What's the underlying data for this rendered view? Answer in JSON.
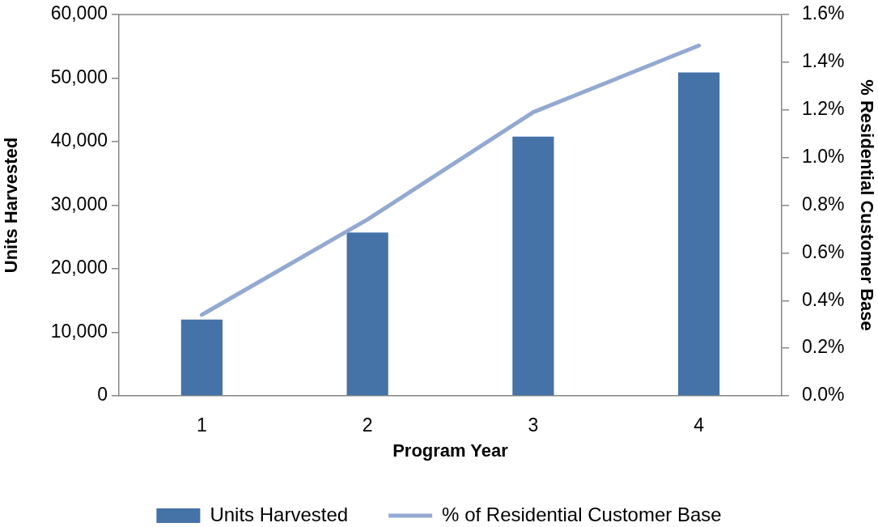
{
  "chart_data": {
    "type": "bar",
    "xlabel": "Program Year",
    "ylabel": "Units Harvested",
    "y2label": "% Residential Customer Base",
    "categories": [
      "1",
      "2",
      "3",
      "4"
    ],
    "series": [
      {
        "name": "Units Harvested",
        "color": "#4572a7",
        "values": [
          12000,
          25700,
          40800,
          50900
        ]
      },
      {
        "name": "% of Residential Customer Base",
        "type": "line",
        "axis": "y2",
        "color": "#93a9d1",
        "values": [
          0.34,
          0.74,
          1.19,
          1.47
        ]
      }
    ],
    "ylim": [
      0,
      60000
    ],
    "yticks": [
      {
        "value": 0,
        "label": "0"
      },
      {
        "value": 10000,
        "label": "10,000"
      },
      {
        "value": 20000,
        "label": "20,000"
      },
      {
        "value": 30000,
        "label": "30,000"
      },
      {
        "value": 40000,
        "label": "40,000"
      },
      {
        "value": 50000,
        "label": "50,000"
      },
      {
        "value": 60000,
        "label": "60,000"
      }
    ],
    "y2lim": [
      0,
      1.6
    ],
    "y2ticks": [
      {
        "value": 0,
        "label": "0.0%"
      },
      {
        "value": 0.2,
        "label": "0.2%"
      },
      {
        "value": 0.4,
        "label": "0.4%"
      },
      {
        "value": 0.6,
        "label": "0.6%"
      },
      {
        "value": 0.8,
        "label": "0.8%"
      },
      {
        "value": 1.0,
        "label": "1.0%"
      },
      {
        "value": 1.2,
        "label": "1.2%"
      },
      {
        "value": 1.4,
        "label": "1.4%"
      },
      {
        "value": 1.6,
        "label": "1.6%"
      }
    ],
    "legend": "bottom",
    "line_style": "solid"
  }
}
